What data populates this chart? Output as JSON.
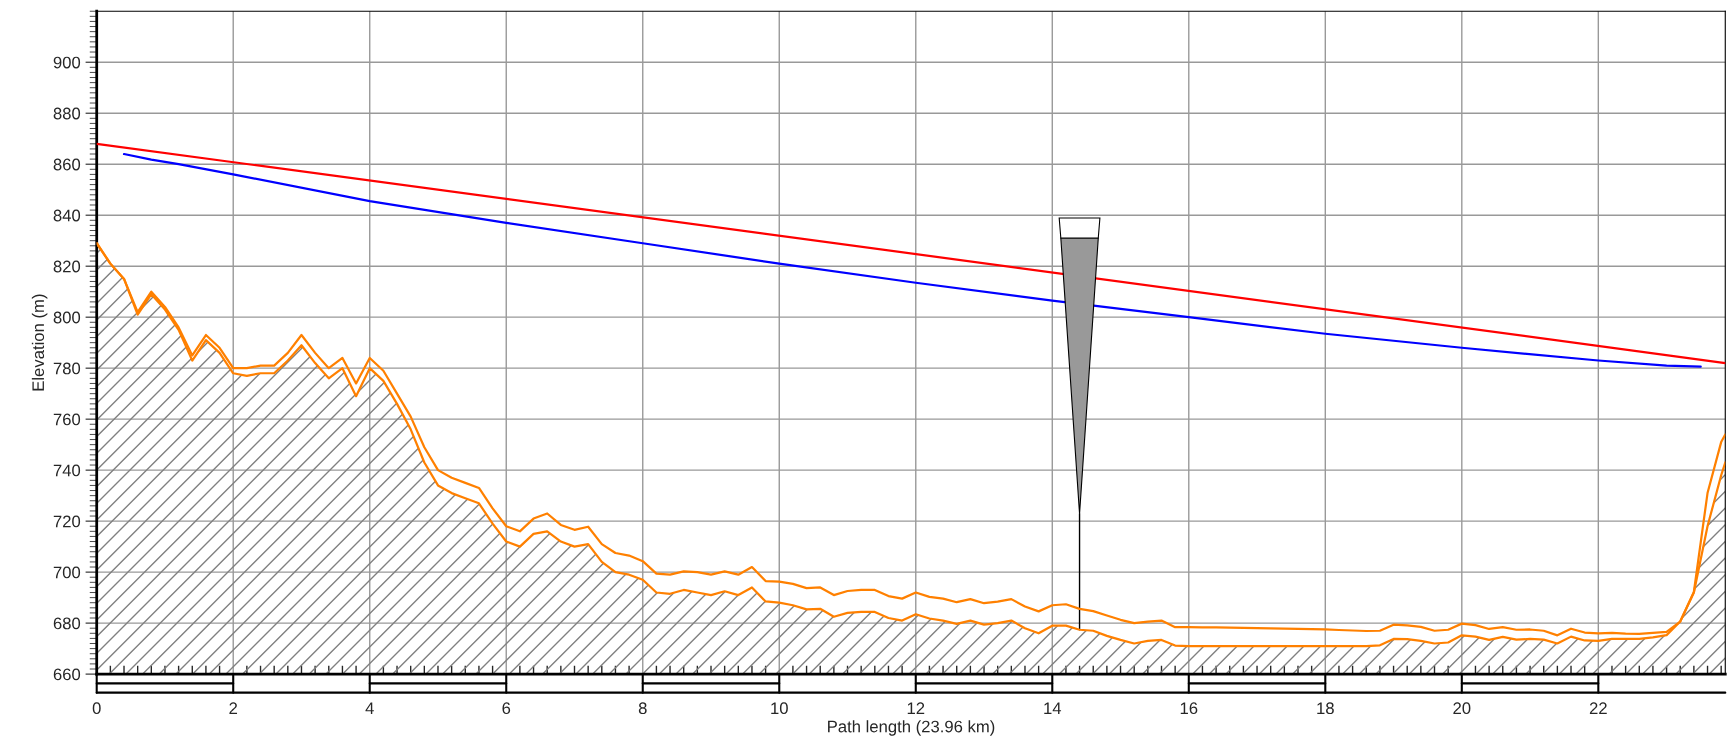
{
  "chart_data": {
    "type": "line",
    "xlabel": "Path length (23.96 km)",
    "ylabel": "Elevation (m)",
    "x": [
      0,
      0.2,
      0.4,
      0.6,
      0.8,
      1.0,
      1.2,
      1.4,
      1.6,
      1.8,
      2.0,
      2.2,
      2.4,
      2.6,
      2.8,
      3.0,
      3.2,
      3.4,
      3.6,
      3.8,
      4.0,
      4.2,
      4.4,
      4.6,
      4.8,
      5.0,
      5.2,
      5.4,
      5.6,
      5.8,
      6.0,
      6.2,
      6.4,
      6.6,
      6.8,
      7.0,
      7.2,
      7.4,
      7.6,
      7.8,
      8.0,
      8.2,
      8.4,
      8.6,
      8.8,
      9.0,
      9.2,
      9.4,
      9.6,
      9.8,
      10.0,
      10.2,
      10.4,
      10.6,
      10.8,
      11.0,
      11.2,
      11.4,
      11.6,
      11.8,
      12.0,
      12.2,
      12.4,
      12.6,
      12.8,
      13.0,
      13.2,
      13.4,
      13.6,
      13.8,
      14.0,
      14.2,
      14.4,
      14.6,
      14.8,
      15.0,
      15.2,
      15.4,
      15.6,
      15.8,
      16.0,
      16.2,
      16.4,
      16.6,
      16.8,
      17.0,
      17.2,
      17.4,
      17.6,
      17.8,
      18.0,
      18.2,
      18.4,
      18.6,
      18.8,
      19.0,
      19.2,
      19.4,
      19.6,
      19.8,
      20.0,
      20.2,
      20.4,
      20.6,
      20.8,
      21.0,
      21.2,
      21.4,
      21.6,
      21.8,
      22.0,
      22.2,
      22.4,
      22.6,
      22.8,
      23.0,
      23.2,
      23.4,
      23.6,
      23.8,
      23.86
    ],
    "series": [
      {
        "type": "area",
        "color": "#ff8000",
        "values": [
          829,
          821,
          815,
          801,
          809,
          803,
          795,
          783,
          791,
          786,
          778,
          777,
          778,
          778,
          783,
          789,
          782,
          776,
          780,
          769,
          780,
          775,
          766,
          756,
          743,
          734,
          731,
          729,
          727,
          719,
          712,
          710,
          715,
          716,
          712,
          710,
          711,
          704,
          700,
          699,
          697,
          692,
          691.5,
          693,
          692,
          691,
          692.5,
          691,
          694,
          688.5,
          688,
          687,
          685.4,
          685.6,
          682.5,
          684,
          684.4,
          684.4,
          682,
          681,
          683.5,
          681.8,
          681,
          679.7,
          681,
          679.4,
          680,
          681,
          678,
          676,
          679,
          679,
          677.4,
          677,
          675,
          673.4,
          672,
          673,
          673.4,
          671.2,
          671,
          671,
          671,
          671,
          671,
          671,
          671,
          671,
          671,
          671,
          671,
          671,
          671,
          671,
          671.3,
          673.8,
          673.7,
          673,
          672,
          672.4,
          675.2,
          674.7,
          673.4,
          674.6,
          673.5,
          673.8,
          673.5,
          672,
          674.7,
          673.2,
          673,
          673.8,
          673.8,
          673.8,
          674.4,
          675.3,
          680.6,
          692,
          718,
          738,
          743
        ]
      },
      {
        "color": "#ff8000",
        "values": [
          829,
          821,
          815,
          802,
          810,
          804,
          796,
          785,
          793,
          788,
          780,
          780,
          781,
          781,
          786,
          793,
          786,
          780,
          784,
          774,
          784,
          779,
          770,
          761,
          749,
          740,
          737,
          735,
          733,
          725,
          718,
          716,
          721,
          723,
          718.5,
          716.6,
          717.8,
          711,
          707.5,
          706.5,
          704.3,
          699.4,
          699,
          700.3,
          700,
          699,
          700.3,
          699,
          702,
          696.5,
          696.3,
          695.4,
          693.7,
          694,
          691,
          692.6,
          693,
          693,
          690.6,
          689.6,
          692,
          690.3,
          689.6,
          688.2,
          689.4,
          687.8,
          688.4,
          689.4,
          686.5,
          684.6,
          687,
          687.4,
          685.6,
          684.7,
          683,
          681.3,
          680,
          680.6,
          681,
          678.4,
          678.4,
          678.3,
          678.3,
          678.2,
          678.1,
          678,
          677.9,
          677.8,
          677.7,
          677.6,
          677.5,
          677.3,
          677.1,
          676.9,
          677,
          679.4,
          679.1,
          678.5,
          677,
          677.4,
          679.8,
          679.2,
          677.7,
          678.4,
          677.4,
          677.5,
          677,
          675.2,
          677.8,
          676.3,
          676,
          676.2,
          675.9,
          675.8,
          676.2,
          676.6,
          680.6,
          692.2,
          731,
          751,
          754
        ]
      },
      {
        "color": "#ff0000",
        "x": [
          0,
          23.86
        ],
        "values": [
          868,
          782
        ]
      },
      {
        "color": "#0000ff",
        "x": [
          0.4,
          0.8,
          1.2,
          2,
          4,
          6,
          8,
          10,
          12,
          14,
          16,
          18,
          20,
          22,
          23,
          23.5
        ],
        "values": [
          864,
          861.8,
          860,
          856,
          845.5,
          837,
          829,
          821,
          813.5,
          806.5,
          800,
          793.5,
          788,
          783,
          781,
          780.6
        ]
      }
    ],
    "xlim": [
      0,
      23.86
    ],
    "ylim": [
      660,
      920
    ],
    "xticks": [
      0,
      2,
      4,
      6,
      8,
      10,
      12,
      14,
      16,
      18,
      20,
      22
    ],
    "yticks": [
      660,
      680,
      700,
      720,
      740,
      760,
      780,
      800,
      820,
      840,
      860,
      880,
      900
    ],
    "grid": true,
    "legend": false,
    "marker": "none",
    "line_style": "solid"
  }
}
